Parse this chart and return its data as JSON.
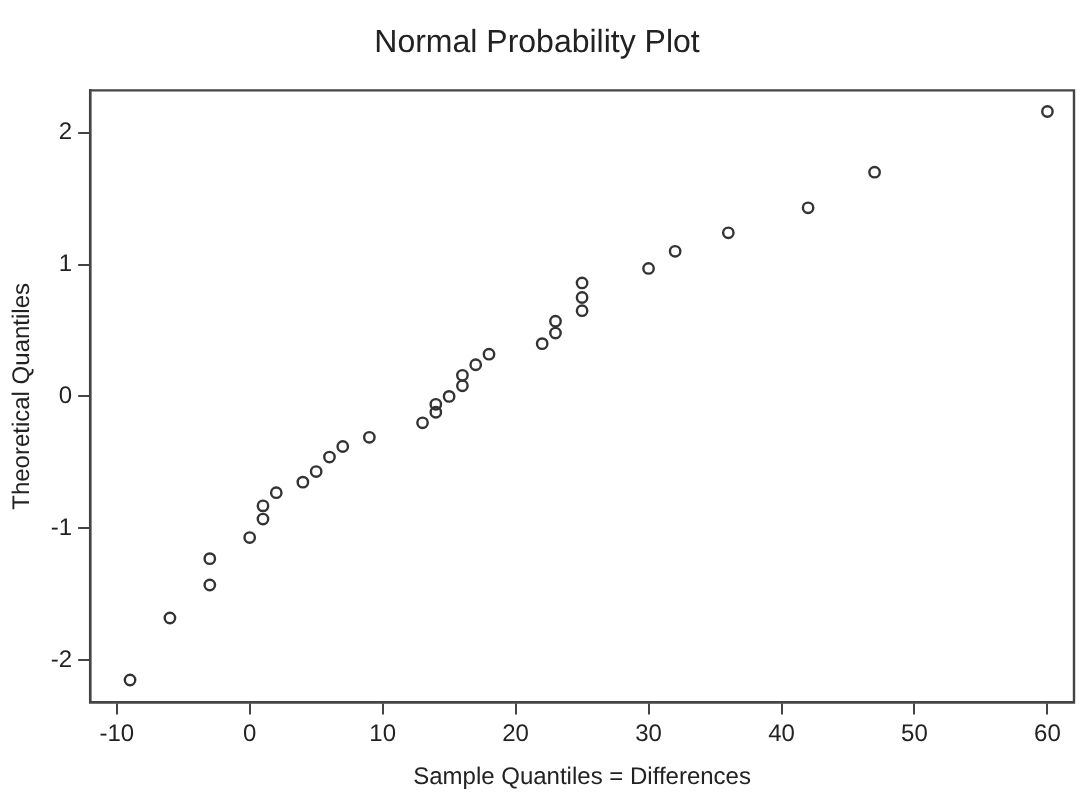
{
  "chart_data": {
    "type": "scatter",
    "title": "Normal Probability Plot",
    "xlabel": "Sample Quantiles = Differences",
    "ylabel": "Theoretical Quantiles",
    "x": [
      -9,
      -6,
      -3,
      -3,
      0,
      1,
      1,
      2,
      4,
      5,
      6,
      7,
      9,
      13,
      14,
      14,
      15,
      16,
      16,
      17,
      18,
      22,
      23,
      23,
      25,
      25,
      25,
      30,
      32,
      36,
      42,
      47,
      60
    ],
    "values": [
      -2.15,
      -1.68,
      -1.43,
      -1.23,
      -1.07,
      -0.93,
      -0.83,
      -0.73,
      -0.65,
      -0.57,
      -0.46,
      -0.38,
      -0.31,
      -0.2,
      -0.12,
      -0.06,
      0,
      0.08,
      0.16,
      0.24,
      0.32,
      0.4,
      0.48,
      0.57,
      0.65,
      0.75,
      0.86,
      0.97,
      1.1,
      1.24,
      1.43,
      1.7,
      2.16
    ],
    "color": "#333333",
    "marker": "circle",
    "grid": false,
    "legend": false,
    "xlim": [
      -12,
      62
    ],
    "xticks": [
      -10,
      0,
      10,
      20,
      30,
      40,
      50,
      60
    ],
    "ylim": [
      -2.32,
      2.32
    ],
    "yticks": [
      -2,
      -1,
      0,
      1,
      2
    ]
  }
}
